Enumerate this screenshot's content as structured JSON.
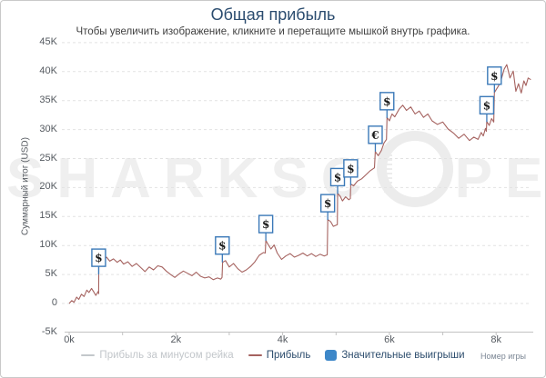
{
  "header": {
    "title": "Общая прибыль",
    "subtitle": "Чтобы увеличить изображение, кликните и перетащите мышкой внутрь графика."
  },
  "watermark": {
    "left": "SHARKSC",
    "right": "PE"
  },
  "legend": {
    "rake_free": "Прибыль за минусом рейка",
    "profit": "Прибыль",
    "significant_wins": "Значительные выигрыши"
  },
  "chart_data": {
    "type": "line",
    "title": "Общая прибыль",
    "xlabel": "Номер игры",
    "ylabel": "Суммарный итог (USD)",
    "xlim": [
      0,
      8650
    ],
    "ylim": [
      -5000,
      45000
    ],
    "grid": "horizontal-dashed",
    "legend_position": "bottom",
    "colors": {
      "profit_line": "#a5625f",
      "marker_blue": "#3b79b8",
      "legend_square": "#3d87c8",
      "disabled_legend": "#c3c7cb",
      "title_text": "#2b4c6f",
      "axis_text": "#555a60",
      "grid": "#e2e2e2",
      "axis_line": "#c2c2c2",
      "watermark": "#efefef"
    },
    "x_ticks": [
      {
        "value": 0,
        "label": "0k"
      },
      {
        "value": 2000,
        "label": "2k"
      },
      {
        "value": 4000,
        "label": "4k"
      },
      {
        "value": 6000,
        "label": "6k"
      },
      {
        "value": 8000,
        "label": "8k"
      }
    ],
    "y_ticks": [
      {
        "value": 45000,
        "label": "45K"
      },
      {
        "value": 40000,
        "label": "40K"
      },
      {
        "value": 35000,
        "label": "35K"
      },
      {
        "value": 30000,
        "label": "30K"
      },
      {
        "value": 25000,
        "label": "25K"
      },
      {
        "value": 20000,
        "label": "20K"
      },
      {
        "value": 15000,
        "label": "15K"
      },
      {
        "value": 10000,
        "label": "10K"
      },
      {
        "value": 5000,
        "label": "5K"
      },
      {
        "value": 0,
        "label": "0"
      },
      {
        "value": -5000,
        "label": "-5K"
      }
    ],
    "series": [
      {
        "name": "Прибыль за минусом рейка",
        "color": "#c3c7cb",
        "visible": false,
        "points": []
      },
      {
        "name": "Прибыль",
        "color": "#a5625f",
        "visible": true,
        "points": [
          [
            0,
            0
          ],
          [
            50,
            500
          ],
          [
            90,
            200
          ],
          [
            140,
            1100
          ],
          [
            180,
            700
          ],
          [
            230,
            1600
          ],
          [
            280,
            1200
          ],
          [
            330,
            2300
          ],
          [
            370,
            1900
          ],
          [
            420,
            2600
          ],
          [
            460,
            2000
          ],
          [
            500,
            1400
          ],
          [
            545,
            2100
          ],
          [
            552,
            1700
          ],
          [
            556,
            7300
          ],
          [
            600,
            7000
          ],
          [
            660,
            7600
          ],
          [
            700,
            8000
          ],
          [
            760,
            7300
          ],
          [
            830,
            7700
          ],
          [
            900,
            7100
          ],
          [
            960,
            7500
          ],
          [
            1020,
            6800
          ],
          [
            1100,
            7200
          ],
          [
            1180,
            6400
          ],
          [
            1260,
            6900
          ],
          [
            1340,
            6200
          ],
          [
            1420,
            5500
          ],
          [
            1500,
            6300
          ],
          [
            1580,
            5800
          ],
          [
            1660,
            6500
          ],
          [
            1740,
            6300
          ],
          [
            1820,
            5600
          ],
          [
            1900,
            5000
          ],
          [
            1980,
            4500
          ],
          [
            2060,
            5100
          ],
          [
            2140,
            5600
          ],
          [
            2220,
            5200
          ],
          [
            2300,
            4800
          ],
          [
            2380,
            5400
          ],
          [
            2460,
            4700
          ],
          [
            2540,
            4400
          ],
          [
            2620,
            4600
          ],
          [
            2700,
            4100
          ],
          [
            2780,
            4400
          ],
          [
            2840,
            4200
          ],
          [
            2865,
            4500
          ],
          [
            2875,
            7100
          ],
          [
            2930,
            7400
          ],
          [
            3000,
            6300
          ],
          [
            3080,
            6900
          ],
          [
            3160,
            6000
          ],
          [
            3240,
            5400
          ],
          [
            3320,
            5800
          ],
          [
            3400,
            6400
          ],
          [
            3480,
            7200
          ],
          [
            3560,
            8300
          ],
          [
            3640,
            8800
          ],
          [
            3675,
            8700
          ],
          [
            3685,
            10900
          ],
          [
            3720,
            10300
          ],
          [
            3780,
            9400
          ],
          [
            3840,
            10100
          ],
          [
            3900,
            8700
          ],
          [
            3980,
            7600
          ],
          [
            4060,
            8200
          ],
          [
            4140,
            8600
          ],
          [
            4220,
            8000
          ],
          [
            4300,
            8300
          ],
          [
            4380,
            8700
          ],
          [
            4460,
            8200
          ],
          [
            4540,
            8600
          ],
          [
            4620,
            8100
          ],
          [
            4700,
            8500
          ],
          [
            4780,
            8200
          ],
          [
            4835,
            8400
          ],
          [
            4845,
            14500
          ],
          [
            4900,
            14100
          ],
          [
            4950,
            13300
          ],
          [
            5025,
            13600
          ],
          [
            5030,
            19000
          ],
          [
            5080,
            18500
          ],
          [
            5120,
            17700
          ],
          [
            5180,
            18400
          ],
          [
            5240,
            17900
          ],
          [
            5268,
            18100
          ],
          [
            5275,
            20600
          ],
          [
            5330,
            20300
          ],
          [
            5400,
            21100
          ],
          [
            5480,
            21500
          ],
          [
            5560,
            22200
          ],
          [
            5640,
            22900
          ],
          [
            5720,
            23400
          ],
          [
            5735,
            26200
          ],
          [
            5790,
            25500
          ],
          [
            5850,
            26400
          ],
          [
            5900,
            27700
          ],
          [
            5945,
            28300
          ],
          [
            5955,
            32100
          ],
          [
            6000,
            31500
          ],
          [
            6050,
            32700
          ],
          [
            6100,
            32200
          ],
          [
            6180,
            33500
          ],
          [
            6250,
            34200
          ],
          [
            6320,
            33300
          ],
          [
            6400,
            33900
          ],
          [
            6480,
            32700
          ],
          [
            6560,
            33200
          ],
          [
            6640,
            32100
          ],
          [
            6720,
            32700
          ],
          [
            6800,
            31500
          ],
          [
            6900,
            30900
          ],
          [
            7000,
            31300
          ],
          [
            7100,
            30100
          ],
          [
            7200,
            29400
          ],
          [
            7300,
            28500
          ],
          [
            7400,
            29200
          ],
          [
            7500,
            28100
          ],
          [
            7580,
            28700
          ],
          [
            7660,
            28300
          ],
          [
            7720,
            29500
          ],
          [
            7760,
            28900
          ],
          [
            7800,
            30200
          ],
          [
            7818,
            29700
          ],
          [
            7825,
            31400
          ],
          [
            7870,
            30700
          ],
          [
            7915,
            31900
          ],
          [
            7955,
            31300
          ],
          [
            7968,
            36400
          ],
          [
            8050,
            37600
          ],
          [
            8100,
            38800
          ],
          [
            8150,
            40400
          ],
          [
            8200,
            41200
          ],
          [
            8260,
            38900
          ],
          [
            8320,
            40100
          ],
          [
            8370,
            36600
          ],
          [
            8420,
            37900
          ],
          [
            8470,
            36300
          ],
          [
            8520,
            38400
          ],
          [
            8560,
            37600
          ],
          [
            8600,
            38900
          ],
          [
            8650,
            38600
          ]
        ]
      }
    ],
    "markers": {
      "name": "Значительные выигрыши",
      "color": "#3b79b8",
      "items": [
        {
          "games": 553,
          "usd": 5000,
          "currency": "$"
        },
        {
          "games": 2870,
          "usd": 7100,
          "currency": "$"
        },
        {
          "games": 3685,
          "usd": 10800,
          "currency": "$"
        },
        {
          "games": 4845,
          "usd": 14400,
          "currency": "$"
        },
        {
          "games": 5030,
          "usd": 18900,
          "currency": "$"
        },
        {
          "games": 5275,
          "usd": 20400,
          "currency": "$"
        },
        {
          "games": 5737,
          "usd": 26200,
          "currency": "€"
        },
        {
          "games": 5955,
          "usd": 32000,
          "currency": "$"
        },
        {
          "games": 7825,
          "usd": 31300,
          "currency": "$"
        },
        {
          "games": 7968,
          "usd": 36400,
          "currency": "$"
        }
      ]
    }
  }
}
